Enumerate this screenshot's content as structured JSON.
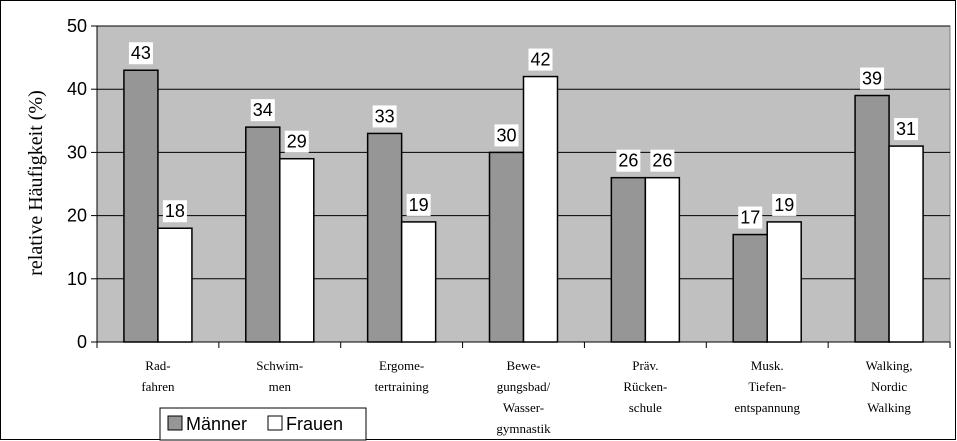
{
  "chart_data": {
    "type": "bar",
    "categories": [
      [
        "Rad-",
        "fahren"
      ],
      [
        "Schwim-",
        "men"
      ],
      [
        "Ergome-",
        "tertraining"
      ],
      [
        "Bewe-",
        "gungsbad/",
        "Wasser-",
        "gymnastik"
      ],
      [
        "Präv.",
        "Rücken-",
        "schule"
      ],
      [
        "Musk.",
        "Tiefen-",
        "entspannung"
      ],
      [
        "Walking,",
        "Nordic",
        "Walking"
      ]
    ],
    "series": [
      {
        "name": "Männer",
        "values": [
          43,
          34,
          33,
          30,
          26,
          17,
          39
        ],
        "color": "#969696"
      },
      {
        "name": "Frauen",
        "values": [
          18,
          29,
          19,
          42,
          26,
          19,
          31
        ],
        "color": "#ffffff"
      }
    ],
    "ylabel": "relative Häufigkeit (%)",
    "ylim": [
      0,
      50
    ],
    "yticks": [
      "0",
      "10",
      "20",
      "30",
      "40",
      "50"
    ],
    "grid": true,
    "plot_background": "#c0c0c0",
    "legend_position": "bottom-left"
  }
}
